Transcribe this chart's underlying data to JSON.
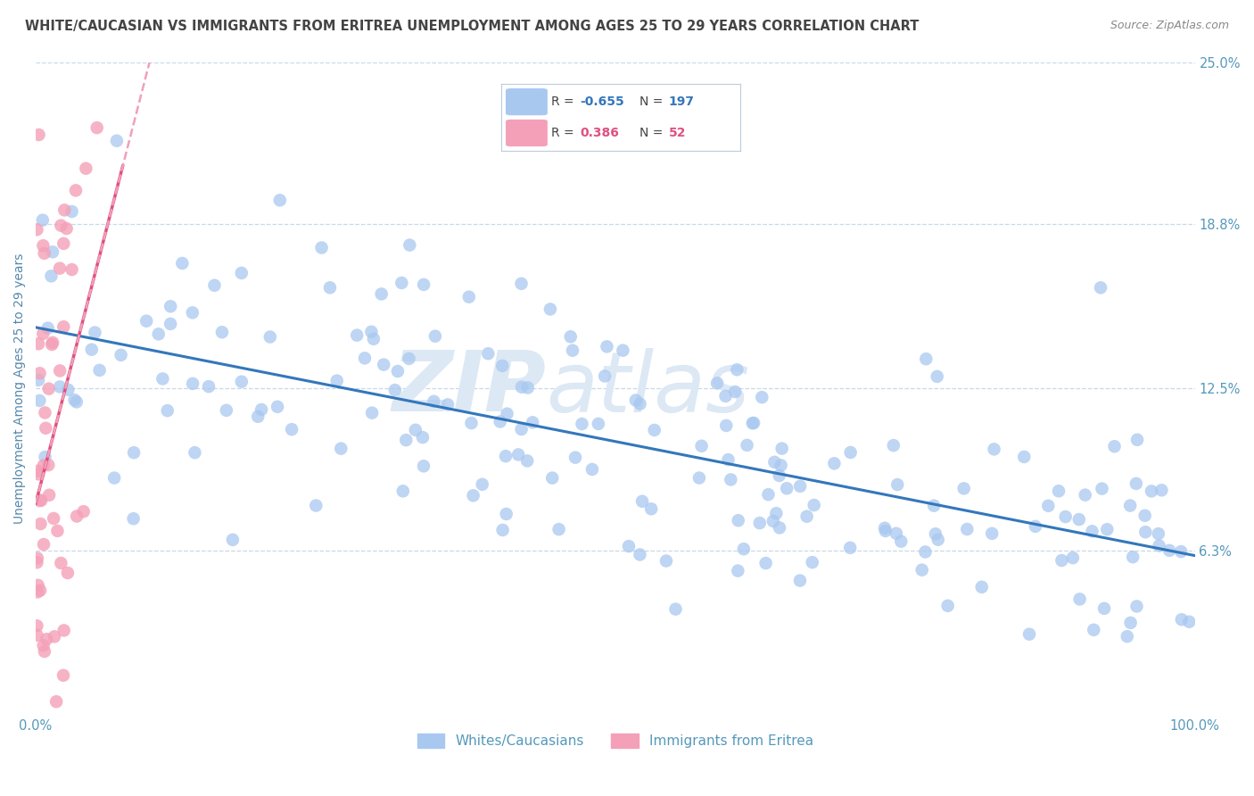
{
  "title": "WHITE/CAUCASIAN VS IMMIGRANTS FROM ERITREA UNEMPLOYMENT AMONG AGES 25 TO 29 YEARS CORRELATION CHART",
  "source": "Source: ZipAtlas.com",
  "ylabel": "Unemployment Among Ages 25 to 29 years",
  "xlim": [
    0,
    1
  ],
  "ylim": [
    0,
    0.25
  ],
  "ytick_vals": [
    0.0,
    0.063,
    0.125,
    0.188,
    0.25
  ],
  "ytick_labels": [
    "",
    "6.3%",
    "12.5%",
    "18.8%",
    "25.0%"
  ],
  "xtick_vals": [
    0.0,
    0.1,
    0.2,
    0.3,
    0.4,
    0.5,
    0.6,
    0.7,
    0.8,
    0.9,
    1.0
  ],
  "xtick_labels": [
    "0.0%",
    "",
    "",
    "",
    "",
    "",
    "",
    "",
    "",
    "",
    "100.0%"
  ],
  "blue_R": -0.655,
  "blue_N": 197,
  "pink_R": 0.386,
  "pink_N": 52,
  "blue_color": "#a8c8f0",
  "blue_line_color": "#3377bb",
  "pink_color": "#f4a0b8",
  "pink_line_color": "#e05080",
  "pink_dash_color": "#f0a0b8",
  "watermark_zip": "ZIP",
  "watermark_atlas": "atlas",
  "watermark_color": "#dde8f5",
  "legend_label_blue": "Whites/Caucasians",
  "legend_label_pink": "Immigrants from Eritrea",
  "background_color": "#ffffff",
  "grid_color": "#c8d8e8",
  "title_color": "#444444",
  "axis_label_color": "#5588aa",
  "tick_label_color": "#5599bb",
  "source_color": "#888888"
}
